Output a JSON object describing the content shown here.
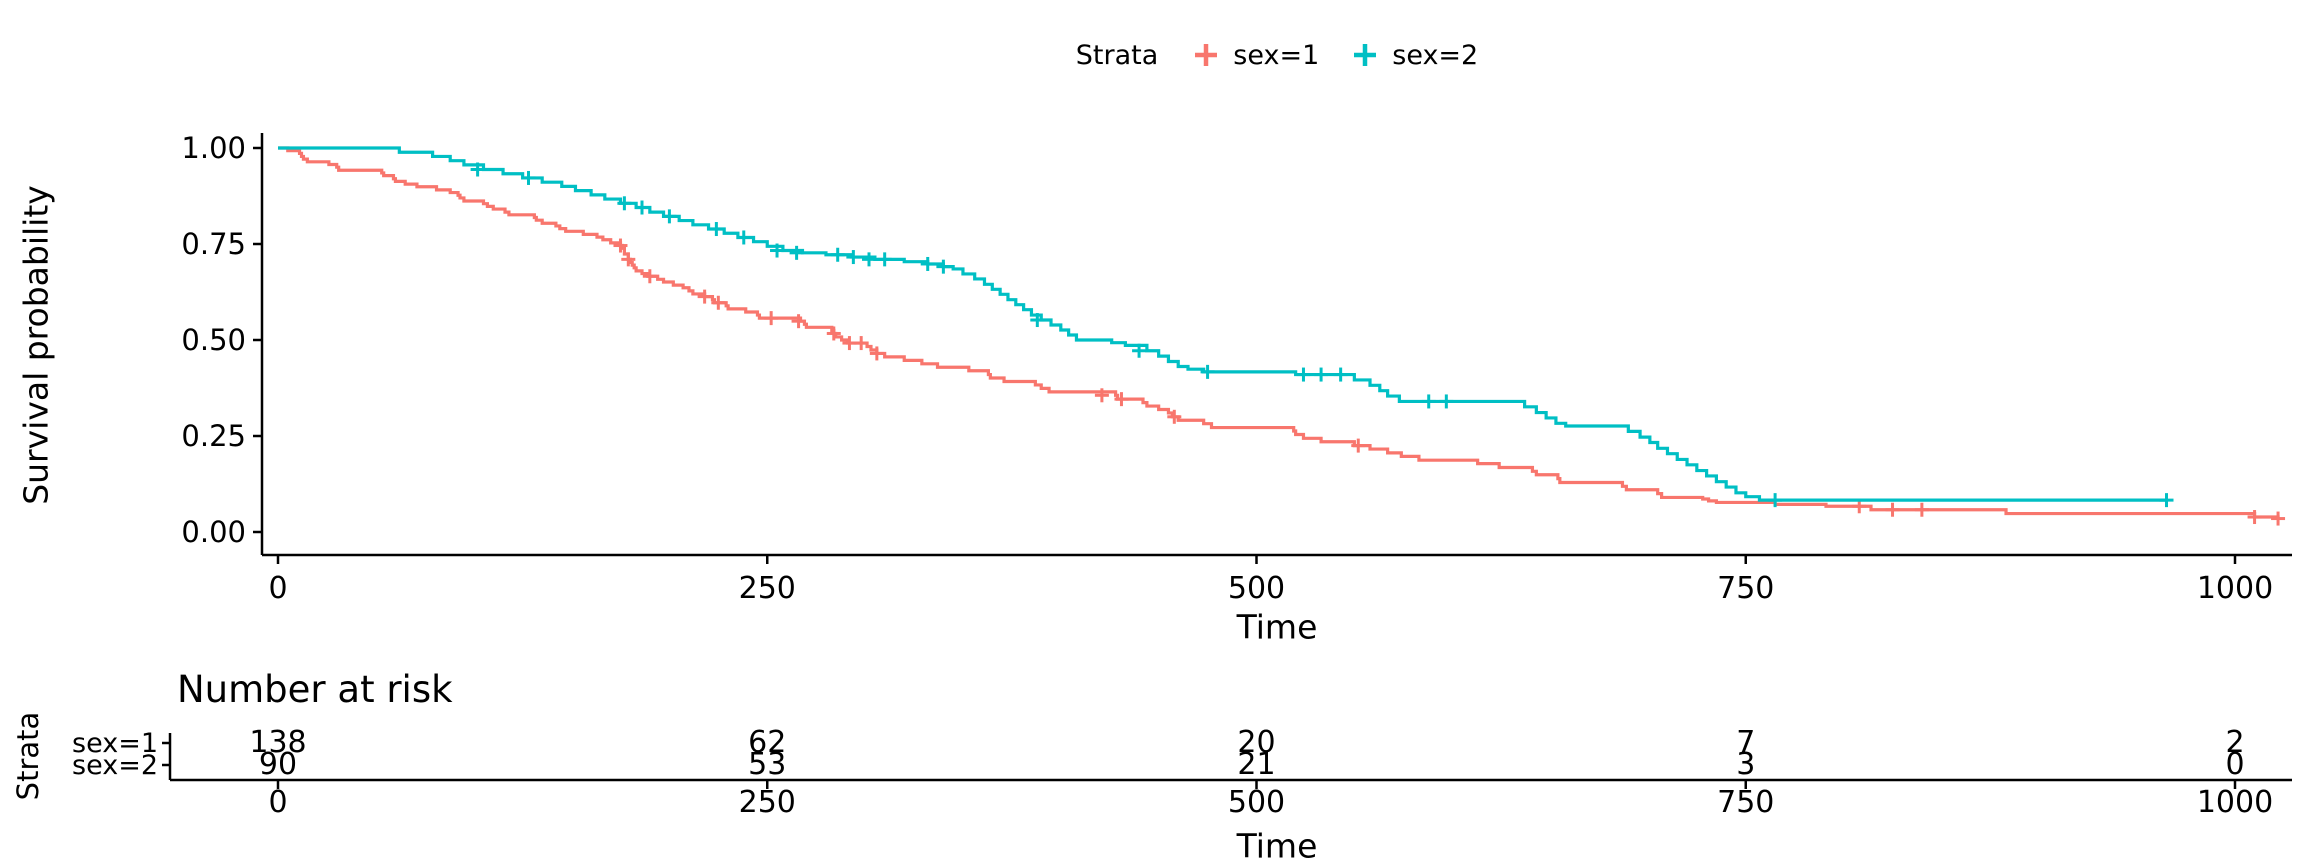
{
  "page": {
    "background": "#ffffff"
  },
  "legend": {
    "title": "Strata",
    "items": [
      {
        "label": "sex=1",
        "color": "#F8766D"
      },
      {
        "label": "sex=2",
        "color": "#00BFC4"
      }
    ]
  },
  "chart_data": {
    "type": "line",
    "subtype": "kaplan-meier-step-curve",
    "title": "",
    "xlabel": "Time",
    "ylabel": "Survival probability",
    "xlim": [
      0,
      1050
    ],
    "ylim": [
      0,
      1
    ],
    "x_ticks": [
      0,
      250,
      500,
      750,
      1000
    ],
    "y_ticks": [
      0,
      0.25,
      0.5,
      0.75,
      1
    ],
    "y_tick_labels": [
      "0.00",
      "0.25",
      "0.50",
      "0.75",
      "1.00"
    ],
    "grid": false,
    "legend_position": "top",
    "series": [
      {
        "name": "sex=1",
        "color": "#F8766D",
        "steps": [
          [
            0,
            1.0
          ],
          [
            5,
            0.993
          ],
          [
            11,
            0.986
          ],
          [
            12,
            0.978
          ],
          [
            13,
            0.971
          ],
          [
            15,
            0.964
          ],
          [
            26,
            0.957
          ],
          [
            30,
            0.95
          ],
          [
            31,
            0.942
          ],
          [
            53,
            0.935
          ],
          [
            54,
            0.928
          ],
          [
            59,
            0.92
          ],
          [
            60,
            0.913
          ],
          [
            65,
            0.906
          ],
          [
            71,
            0.899
          ],
          [
            81,
            0.891
          ],
          [
            88,
            0.884
          ],
          [
            92,
            0.877
          ],
          [
            93,
            0.87
          ],
          [
            95,
            0.862
          ],
          [
            105,
            0.855
          ],
          [
            107,
            0.848
          ],
          [
            110,
            0.841
          ],
          [
            116,
            0.833
          ],
          [
            118,
            0.826
          ],
          [
            131,
            0.819
          ],
          [
            132,
            0.812
          ],
          [
            135,
            0.804
          ],
          [
            142,
            0.797
          ],
          [
            144,
            0.79
          ],
          [
            147,
            0.783
          ],
          [
            156,
            0.775
          ],
          [
            163,
            0.768
          ],
          [
            166,
            0.761
          ],
          [
            170,
            0.753
          ],
          [
            175,
            0.746
          ],
          [
            176,
            0.739
          ],
          [
            177,
            0.724
          ],
          [
            179,
            0.71
          ],
          [
            180,
            0.702
          ],
          [
            181,
            0.695
          ],
          [
            182,
            0.688
          ],
          [
            183,
            0.68
          ],
          [
            186,
            0.673
          ],
          [
            189,
            0.666
          ],
          [
            194,
            0.658
          ],
          [
            197,
            0.651
          ],
          [
            202,
            0.643
          ],
          [
            207,
            0.636
          ],
          [
            210,
            0.628
          ],
          [
            212,
            0.62
          ],
          [
            218,
            0.613
          ],
          [
            222,
            0.605
          ],
          [
            223,
            0.597
          ],
          [
            229,
            0.589
          ],
          [
            230,
            0.581
          ],
          [
            239,
            0.573
          ],
          [
            245,
            0.565
          ],
          [
            246,
            0.557
          ],
          [
            267,
            0.549
          ],
          [
            269,
            0.541
          ],
          [
            270,
            0.533
          ],
          [
            283,
            0.525
          ],
          [
            284,
            0.517
          ],
          [
            285,
            0.508
          ],
          [
            288,
            0.5
          ],
          [
            291,
            0.492
          ],
          [
            301,
            0.483
          ],
          [
            303,
            0.474
          ],
          [
            306,
            0.465
          ],
          [
            310,
            0.456
          ],
          [
            320,
            0.447
          ],
          [
            329,
            0.438
          ],
          [
            337,
            0.429
          ],
          [
            353,
            0.42
          ],
          [
            363,
            0.41
          ],
          [
            364,
            0.401
          ],
          [
            371,
            0.392
          ],
          [
            387,
            0.383
          ],
          [
            390,
            0.374
          ],
          [
            394,
            0.365
          ],
          [
            428,
            0.356
          ],
          [
            429,
            0.346
          ],
          [
            442,
            0.337
          ],
          [
            444,
            0.328
          ],
          [
            450,
            0.319
          ],
          [
            455,
            0.31
          ],
          [
            457,
            0.3
          ],
          [
            460,
            0.291
          ],
          [
            473,
            0.282
          ],
          [
            477,
            0.272
          ],
          [
            519,
            0.263
          ],
          [
            520,
            0.254
          ],
          [
            524,
            0.244
          ],
          [
            533,
            0.235
          ],
          [
            550,
            0.225
          ],
          [
            558,
            0.216
          ],
          [
            567,
            0.206
          ],
          [
            574,
            0.197
          ],
          [
            583,
            0.187
          ],
          [
            613,
            0.178
          ],
          [
            624,
            0.168
          ],
          [
            641,
            0.158
          ],
          [
            643,
            0.149
          ],
          [
            654,
            0.139
          ],
          [
            655,
            0.129
          ],
          [
            687,
            0.119
          ],
          [
            689,
            0.11
          ],
          [
            705,
            0.1
          ],
          [
            707,
            0.09
          ],
          [
            728,
            0.086
          ],
          [
            731,
            0.081
          ],
          [
            735,
            0.077
          ],
          [
            765,
            0.072
          ],
          [
            791,
            0.067
          ],
          [
            814,
            0.058
          ],
          [
            883,
            0.048
          ],
          [
            1010,
            0.039
          ],
          [
            1022,
            0.035
          ]
        ],
        "censor_marks": [
          [
            175,
            0.746
          ],
          [
            179,
            0.71
          ],
          [
            190,
            0.666
          ],
          [
            218,
            0.613
          ],
          [
            225,
            0.597
          ],
          [
            252,
            0.557
          ],
          [
            266,
            0.549
          ],
          [
            284,
            0.517
          ],
          [
            292,
            0.492
          ],
          [
            298,
            0.492
          ],
          [
            306,
            0.465
          ],
          [
            421,
            0.356
          ],
          [
            431,
            0.346
          ],
          [
            458,
            0.3
          ],
          [
            552,
            0.225
          ],
          [
            808,
            0.067
          ],
          [
            825,
            0.058
          ],
          [
            840,
            0.058
          ],
          [
            1010,
            0.039
          ],
          [
            1022,
            0.035
          ]
        ]
      },
      {
        "name": "sex=2",
        "color": "#00BFC4",
        "steps": [
          [
            0,
            1.0
          ],
          [
            62,
            0.989
          ],
          [
            79,
            0.978
          ],
          [
            88,
            0.967
          ],
          [
            95,
            0.956
          ],
          [
            105,
            0.944
          ],
          [
            115,
            0.933
          ],
          [
            125,
            0.922
          ],
          [
            135,
            0.911
          ],
          [
            145,
            0.9
          ],
          [
            152,
            0.889
          ],
          [
            160,
            0.878
          ],
          [
            167,
            0.867
          ],
          [
            175,
            0.856
          ],
          [
            183,
            0.845
          ],
          [
            190,
            0.833
          ],
          [
            197,
            0.822
          ],
          [
            205,
            0.811
          ],
          [
            212,
            0.8
          ],
          [
            220,
            0.789
          ],
          [
            228,
            0.778
          ],
          [
            235,
            0.767
          ],
          [
            243,
            0.756
          ],
          [
            250,
            0.744
          ],
          [
            258,
            0.733
          ],
          [
            268,
            0.727
          ],
          [
            280,
            0.722
          ],
          [
            293,
            0.716
          ],
          [
            305,
            0.71
          ],
          [
            320,
            0.704
          ],
          [
            332,
            0.698
          ],
          [
            340,
            0.691
          ],
          [
            345,
            0.685
          ],
          [
            350,
            0.672
          ],
          [
            356,
            0.659
          ],
          [
            361,
            0.645
          ],
          [
            365,
            0.632
          ],
          [
            369,
            0.619
          ],
          [
            373,
            0.605
          ],
          [
            377,
            0.592
          ],
          [
            381,
            0.579
          ],
          [
            385,
            0.565
          ],
          [
            390,
            0.552
          ],
          [
            395,
            0.539
          ],
          [
            400,
            0.526
          ],
          [
            404,
            0.513
          ],
          [
            408,
            0.5
          ],
          [
            426,
            0.493
          ],
          [
            433,
            0.486
          ],
          [
            444,
            0.472
          ],
          [
            450,
            0.458
          ],
          [
            455,
            0.444
          ],
          [
            460,
            0.431
          ],
          [
            465,
            0.424
          ],
          [
            473,
            0.417
          ],
          [
            520,
            0.41
          ],
          [
            550,
            0.396
          ],
          [
            558,
            0.382
          ],
          [
            563,
            0.368
          ],
          [
            567,
            0.354
          ],
          [
            573,
            0.34
          ],
          [
            637,
            0.326
          ],
          [
            643,
            0.311
          ],
          [
            648,
            0.297
          ],
          [
            653,
            0.283
          ],
          [
            658,
            0.276
          ],
          [
            690,
            0.262
          ],
          [
            696,
            0.247
          ],
          [
            701,
            0.233
          ],
          [
            705,
            0.218
          ],
          [
            710,
            0.204
          ],
          [
            715,
            0.189
          ],
          [
            720,
            0.175
          ],
          [
            725,
            0.16
          ],
          [
            730,
            0.146
          ],
          [
            735,
            0.131
          ],
          [
            740,
            0.117
          ],
          [
            745,
            0.102
          ],
          [
            750,
            0.092
          ],
          [
            757,
            0.083
          ],
          [
            965,
            0.083
          ]
        ],
        "censor_marks": [
          [
            102,
            0.944
          ],
          [
            128,
            0.922
          ],
          [
            177,
            0.856
          ],
          [
            186,
            0.845
          ],
          [
            200,
            0.822
          ],
          [
            224,
            0.789
          ],
          [
            238,
            0.767
          ],
          [
            255,
            0.733
          ],
          [
            265,
            0.727
          ],
          [
            286,
            0.722
          ],
          [
            294,
            0.716
          ],
          [
            302,
            0.71
          ],
          [
            310,
            0.71
          ],
          [
            332,
            0.698
          ],
          [
            340,
            0.691
          ],
          [
            388,
            0.552
          ],
          [
            440,
            0.472
          ],
          [
            475,
            0.417
          ],
          [
            524,
            0.41
          ],
          [
            533,
            0.41
          ],
          [
            543,
            0.41
          ],
          [
            588,
            0.34
          ],
          [
            597,
            0.34
          ],
          [
            765,
            0.083
          ],
          [
            965,
            0.083
          ]
        ]
      }
    ],
    "risk_table": {
      "title": "Number at risk",
      "ylabel": "Strata",
      "xlabel": "Time",
      "times": [
        0,
        250,
        500,
        750,
        1000
      ],
      "rows": [
        {
          "label": "sex=1",
          "color": "#F8766D",
          "values": [
            138,
            62,
            20,
            7,
            2
          ]
        },
        {
          "label": "sex=2",
          "color": "#00BFC4",
          "values": [
            90,
            53,
            21,
            3,
            0
          ]
        }
      ]
    }
  }
}
